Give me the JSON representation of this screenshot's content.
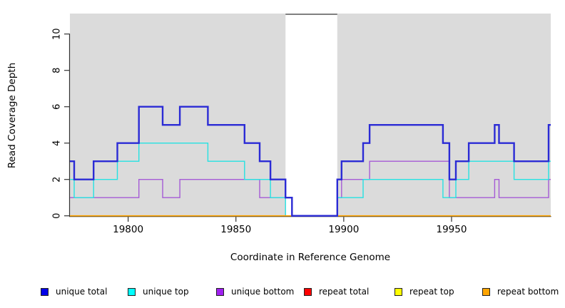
{
  "chart_data": {
    "type": "line",
    "subtype": "step-coverage",
    "title": "",
    "xlabel": "Coordinate in Reference Genome",
    "ylabel": "Read Coverage Depth",
    "xlim": [
      19773,
      19996
    ],
    "ylim": [
      0,
      11.2
    ],
    "x_ticks": [
      {
        "value": 19800,
        "label": "19800"
      },
      {
        "value": 19850,
        "label": "19850"
      },
      {
        "value": 19900,
        "label": "19900"
      },
      {
        "value": 19950,
        "label": "19950"
      }
    ],
    "y_ticks": [
      {
        "value": 0,
        "label": "0"
      },
      {
        "value": 2,
        "label": "2"
      },
      {
        "value": 4,
        "label": "4"
      },
      {
        "value": 6,
        "label": "6"
      },
      {
        "value": 8,
        "label": "8"
      },
      {
        "value": 10,
        "label": "10"
      }
    ],
    "grid": false,
    "legend_position": "bottom",
    "panel_background_color": "#DBDBDB",
    "background_regions": [
      {
        "name": "shaded-left",
        "x_start": 19773,
        "x_end": 19873
      },
      {
        "name": "shaded-right",
        "x_start": 19897,
        "x_end": 19996
      }
    ],
    "gap_region": {
      "x_start": 19873,
      "x_end": 19897,
      "fill": "#FFFFFF",
      "top_border_color": "#7F7F7F"
    },
    "axis_color": "#333333",
    "draw_order": [
      "repeat_total",
      "repeat_top",
      "unique_bottom",
      "unique_top",
      "repeat_bottom",
      "unique_total"
    ],
    "series": [
      {
        "key": "unique_total",
        "label": "unique total",
        "line_color": "#2B2BD5",
        "legend_color": "#0000E8",
        "line_width": 2.4,
        "steps": [
          [
            19773,
            3
          ],
          [
            19775,
            2
          ],
          [
            19784,
            3
          ],
          [
            19795,
            4
          ],
          [
            19805,
            6
          ],
          [
            19816,
            5
          ],
          [
            19824,
            6
          ],
          [
            19837,
            5
          ],
          [
            19854,
            4
          ],
          [
            19861,
            3
          ],
          [
            19866,
            2
          ],
          [
            19873,
            1
          ],
          [
            19876,
            0
          ],
          [
            19897,
            2
          ],
          [
            19899,
            3
          ],
          [
            19909,
            4
          ],
          [
            19912,
            5
          ],
          [
            19946,
            4
          ],
          [
            19949,
            2
          ],
          [
            19952,
            3
          ],
          [
            19958,
            4
          ],
          [
            19970,
            5
          ],
          [
            19972,
            4
          ],
          [
            19979,
            3
          ],
          [
            19995,
            5
          ]
        ]
      },
      {
        "key": "unique_top",
        "label": "unique top",
        "line_color": "#25E2E2",
        "legend_color": "#00FFFF",
        "line_width": 1.4,
        "steps": [
          [
            19773,
            2
          ],
          [
            19775,
            1
          ],
          [
            19784,
            2
          ],
          [
            19795,
            3
          ],
          [
            19805,
            4
          ],
          [
            19837,
            3
          ],
          [
            19854,
            2
          ],
          [
            19866,
            1
          ],
          [
            19873,
            0
          ],
          [
            19897,
            1
          ],
          [
            19909,
            2
          ],
          [
            19946,
            1
          ],
          [
            19952,
            2
          ],
          [
            19958,
            3
          ],
          [
            19979,
            2
          ],
          [
            19995,
            3
          ]
        ]
      },
      {
        "key": "unique_bottom",
        "label": "unique bottom",
        "line_color": "#A55BD6",
        "legend_color": "#A020F0",
        "line_width": 1.4,
        "steps": [
          [
            19773,
            1
          ],
          [
            19805,
            2
          ],
          [
            19816,
            1
          ],
          [
            19824,
            2
          ],
          [
            19861,
            1
          ],
          [
            19876,
            0
          ],
          [
            19897,
            1
          ],
          [
            19899,
            2
          ],
          [
            19912,
            3
          ],
          [
            19949,
            1
          ],
          [
            19970,
            2
          ],
          [
            19972,
            1
          ],
          [
            19995,
            2
          ]
        ]
      },
      {
        "key": "repeat_total",
        "label": "repeat total",
        "line_color": "#E00000",
        "legend_color": "#FF0000",
        "line_width": 1.4,
        "steps": [
          [
            19773,
            0
          ]
        ]
      },
      {
        "key": "repeat_top",
        "label": "repeat top",
        "line_color": "#F5F500",
        "legend_color": "#FFFF00",
        "line_width": 1.4,
        "steps": [
          [
            19773,
            0
          ]
        ]
      },
      {
        "key": "repeat_bottom",
        "label": "repeat bottom",
        "line_color": "#FFA500",
        "legend_color": "#FFA500",
        "line_width": 1.7,
        "value": 0,
        "segments": [
          [
            19773,
            19876
          ],
          [
            19897,
            19996
          ]
        ]
      }
    ]
  }
}
